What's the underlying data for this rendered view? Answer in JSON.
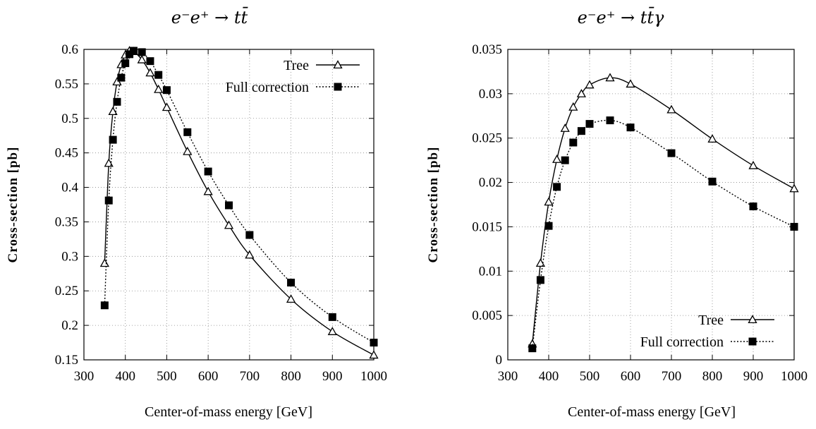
{
  "chart_data": [
    {
      "type": "line",
      "title": "e⁻e⁺ → tt̄",
      "xlabel": "Center-of-mass energy [GeV]",
      "ylabel": "Cross-section [pb]",
      "xlim": [
        300,
        1000
      ],
      "ylim": [
        0.15,
        0.6
      ],
      "xticks": [
        "300",
        "400",
        "500",
        "600",
        "700",
        "800",
        "900",
        "1000"
      ],
      "yticks": [
        "0.15",
        "0.2",
        "0.25",
        "0.3",
        "0.35",
        "0.4",
        "0.45",
        "0.5",
        "0.55",
        "0.6"
      ],
      "grid": true,
      "legend_position": "top-right",
      "series": [
        {
          "name": "Tree",
          "marker": "open-triangle",
          "line": "solid",
          "x": [
            350,
            360,
            370,
            380,
            390,
            400,
            410,
            420,
            440,
            460,
            480,
            500,
            550,
            600,
            650,
            700,
            800,
            900,
            1000
          ],
          "y": [
            0.29,
            0.435,
            0.51,
            0.553,
            0.578,
            0.592,
            0.598,
            0.597,
            0.585,
            0.566,
            0.542,
            0.516,
            0.452,
            0.394,
            0.345,
            0.302,
            0.238,
            0.191,
            0.157
          ]
        },
        {
          "name": "Full correction",
          "marker": "filled-square",
          "line": "dotted",
          "x": [
            350,
            360,
            370,
            380,
            390,
            400,
            410,
            420,
            440,
            460,
            480,
            500,
            550,
            600,
            650,
            700,
            800,
            900,
            1000
          ],
          "y": [
            0.229,
            0.381,
            0.469,
            0.524,
            0.559,
            0.58,
            0.593,
            0.598,
            0.596,
            0.583,
            0.563,
            0.541,
            0.48,
            0.423,
            0.374,
            0.331,
            0.262,
            0.212,
            0.175
          ]
        }
      ]
    },
    {
      "type": "line",
      "title": "e⁻e⁺ → tt̄γ",
      "xlabel": "Center-of-mass energy [GeV]",
      "ylabel": "Cross-section [pb]",
      "xlim": [
        300,
        1000
      ],
      "ylim": [
        0,
        0.035
      ],
      "xticks": [
        "300",
        "400",
        "500",
        "600",
        "700",
        "800",
        "900",
        "1000"
      ],
      "yticks": [
        "0",
        "0.005",
        "0.01",
        "0.015",
        "0.02",
        "0.025",
        "0.03",
        "0.035"
      ],
      "grid": true,
      "legend_position": "bottom-right",
      "series": [
        {
          "name": "Tree",
          "marker": "open-triangle",
          "line": "solid",
          "x": [
            360,
            380,
            400,
            420,
            440,
            460,
            480,
            500,
            550,
            600,
            700,
            800,
            900,
            1000
          ],
          "y": [
            0.0018,
            0.0109,
            0.0178,
            0.0226,
            0.0261,
            0.0285,
            0.03,
            0.031,
            0.0318,
            0.0311,
            0.0282,
            0.0249,
            0.0219,
            0.0193
          ]
        },
        {
          "name": "Full correction",
          "marker": "filled-square",
          "line": "dotted",
          "x": [
            360,
            380,
            400,
            420,
            440,
            460,
            480,
            500,
            550,
            600,
            700,
            800,
            900,
            1000
          ],
          "y": [
            0.0013,
            0.009,
            0.0151,
            0.0195,
            0.0225,
            0.0245,
            0.0258,
            0.0266,
            0.027,
            0.0262,
            0.0233,
            0.0201,
            0.0173,
            0.015
          ]
        }
      ]
    }
  ]
}
